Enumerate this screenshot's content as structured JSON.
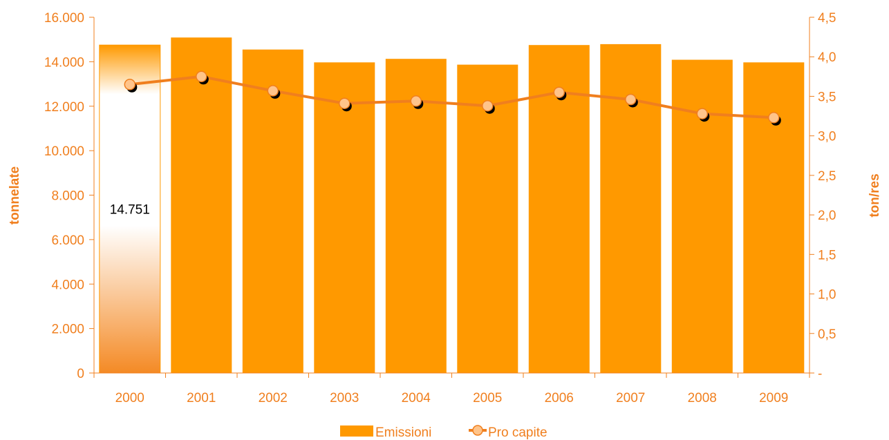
{
  "chart_data": {
    "type": "bar",
    "categories": [
      "2000",
      "2001",
      "2002",
      "2003",
      "2004",
      "2005",
      "2006",
      "2007",
      "2008",
      "2009"
    ],
    "series": [
      {
        "name": "Emissioni",
        "type": "bar",
        "axis": "left",
        "values": [
          14751,
          15090,
          14550,
          13970,
          14130,
          13870,
          14750,
          14790,
          14090,
          13970
        ],
        "color": "#ff9900"
      },
      {
        "name": "Pro capite",
        "type": "line",
        "axis": "right",
        "values": [
          3.65,
          3.75,
          3.57,
          3.41,
          3.44,
          3.38,
          3.55,
          3.46,
          3.28,
          3.23
        ],
        "color": "#f07f1e",
        "marker_color": "#ffc48a"
      }
    ],
    "ylabel": "tonnelate",
    "y2label": "ton/res",
    "ylim": [
      0,
      16000
    ],
    "y2lim": [
      0,
      4.5
    ],
    "yticks": [
      "0",
      "2.000",
      "4.000",
      "6.000",
      "8.000",
      "10.000",
      "12.000",
      "14.000",
      "16.000"
    ],
    "y2ticks": [
      "-",
      "0,5",
      "1,0",
      "1,5",
      "2,0",
      "2,5",
      "3,0",
      "3,5",
      "4,0",
      "4,5"
    ],
    "data_labels": [
      {
        "category": "2000",
        "text": "14.751"
      }
    ],
    "highlight_category": "2000",
    "grid": false,
    "legend_position": "bottom",
    "legend": [
      "Emissioni",
      "Pro capite"
    ]
  }
}
